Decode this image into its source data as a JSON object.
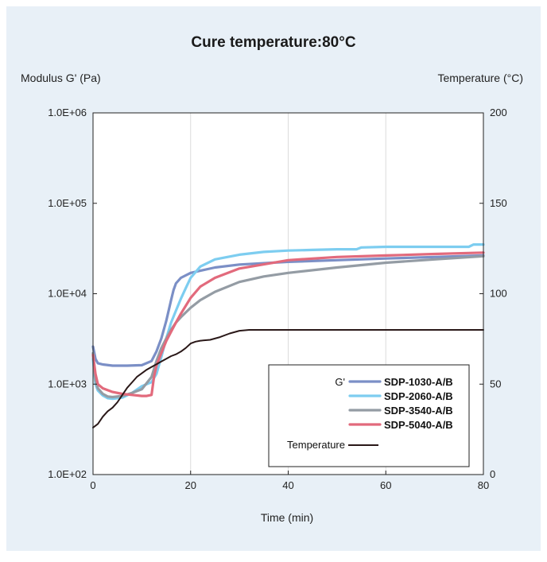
{
  "chart_data": {
    "type": "line",
    "title": "Cure temperature:80°C",
    "xlabel": "Time (min)",
    "ylabel_left": "Modulus G' (Pa)",
    "ylabel_right": "Temperature (°C)",
    "xlim": [
      0,
      80
    ],
    "ylim_left": [
      100,
      1000000
    ],
    "ylim_right": [
      0,
      200
    ],
    "yscale_left": "log",
    "x_ticks": [
      "0",
      "20",
      "40",
      "60",
      "80"
    ],
    "y_left_ticks": [
      "1.0E+02",
      "1.0E+03",
      "1.0E+04",
      "1.0E+05",
      "1.0E+06"
    ],
    "y_right_ticks": [
      "0",
      "50",
      "100",
      "150",
      "200"
    ],
    "grid": "vertical",
    "legend": {
      "placement": "bottom-right",
      "group_label": "G'"
    },
    "series": [
      {
        "name": "SDP-1030-A/B",
        "color": "#7b8fc6",
        "axis": "left",
        "x": [
          0,
          0.5,
          1,
          2,
          4,
          7,
          10,
          12,
          13,
          14,
          15,
          16,
          16.5,
          17,
          18,
          20,
          25,
          30,
          40,
          50,
          60,
          70,
          80
        ],
        "y": [
          2600,
          1900,
          1700,
          1650,
          1600,
          1600,
          1620,
          1800,
          2300,
          3200,
          5000,
          8500,
          11000,
          13000,
          15000,
          17000,
          19500,
          21000,
          22500,
          23500,
          24500,
          25500,
          26500
        ]
      },
      {
        "name": "SDP-2060-A/B",
        "color": "#7dcdf0",
        "axis": "left",
        "x": [
          0,
          0.5,
          1,
          2,
          3,
          4,
          6,
          8,
          10,
          12,
          13,
          14,
          15,
          16,
          17,
          18,
          19,
          20,
          22,
          25,
          30,
          35,
          40,
          45,
          50,
          54,
          55,
          60,
          70,
          77,
          78,
          80
        ],
        "y": [
          1900,
          1000,
          850,
          750,
          700,
          690,
          710,
          800,
          950,
          1050,
          1300,
          2000,
          3200,
          4800,
          6500,
          8800,
          11500,
          15000,
          20000,
          24000,
          27000,
          29000,
          30000,
          30500,
          31000,
          31000,
          32500,
          33000,
          33000,
          33000,
          35000,
          35000
        ]
      },
      {
        "name": "SDP-3540-A/B",
        "color": "#949ca4",
        "axis": "left",
        "x": [
          0,
          0.5,
          1,
          2,
          3,
          4,
          6,
          8,
          10,
          12,
          13,
          14,
          15,
          16,
          17,
          18,
          20,
          22,
          25,
          30,
          35,
          40,
          50,
          60,
          70,
          80
        ],
        "y": [
          2200,
          1100,
          900,
          780,
          730,
          720,
          740,
          800,
          880,
          1200,
          1800,
          2500,
          3200,
          4000,
          4800,
          5500,
          7000,
          8500,
          10500,
          13500,
          15500,
          17000,
          19500,
          22000,
          24000,
          26000
        ]
      },
      {
        "name": "SDP-5040-A/B",
        "color": "#e26a7c",
        "axis": "left",
        "x": [
          0,
          0.5,
          1,
          2,
          4,
          6,
          8,
          10,
          11,
          12,
          12.5,
          13,
          14,
          15,
          16,
          17,
          18,
          20,
          22,
          25,
          30,
          40,
          50,
          60,
          70,
          80
        ],
        "y": [
          2100,
          1300,
          1000,
          900,
          820,
          780,
          760,
          740,
          740,
          760,
          1200,
          1600,
          2200,
          3000,
          3800,
          4800,
          6000,
          9000,
          12000,
          15000,
          19000,
          23500,
          25500,
          26500,
          27500,
          28500
        ]
      },
      {
        "name": "Temperature",
        "color": "#2a1818",
        "axis": "right",
        "x": [
          0,
          1,
          2,
          3,
          4,
          5,
          6,
          7,
          8,
          9,
          10,
          11,
          12,
          13,
          14,
          15,
          16,
          17,
          18,
          19,
          20,
          21,
          22,
          24,
          26,
          28,
          30,
          32,
          40,
          60,
          80
        ],
        "y": [
          26,
          28,
          32,
          35,
          37,
          40,
          44,
          48,
          51,
          54,
          56,
          58,
          59.5,
          61,
          62.5,
          64,
          65.5,
          66.5,
          68,
          70,
          72.5,
          73.5,
          74,
          74.5,
          76,
          78,
          79.5,
          80,
          80,
          80,
          80
        ]
      }
    ]
  }
}
